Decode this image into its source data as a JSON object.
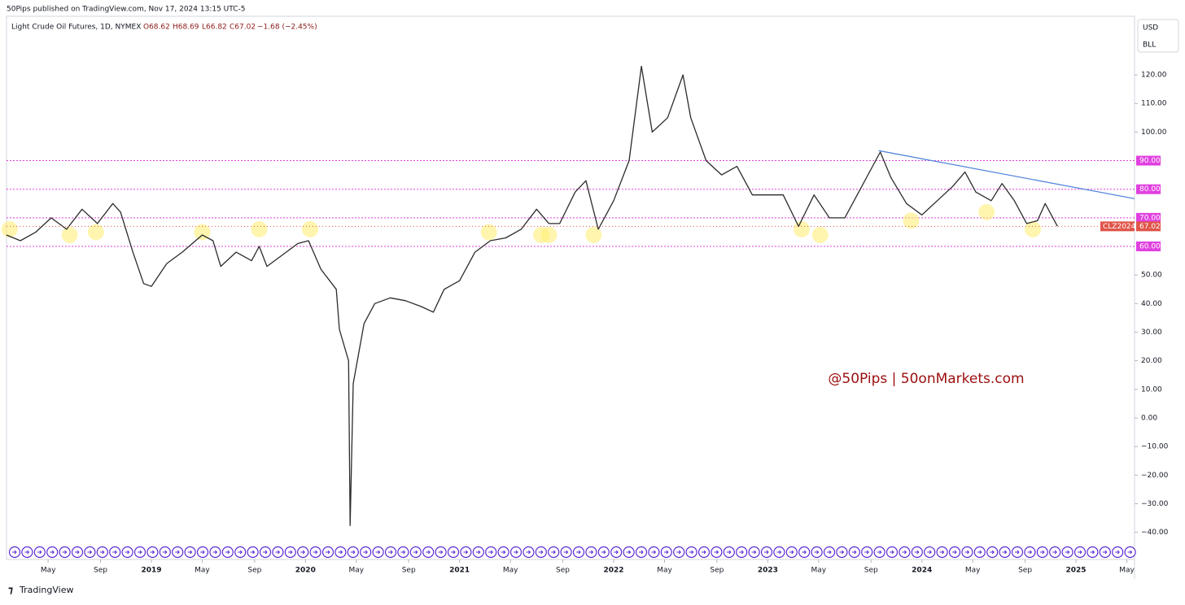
{
  "chart_data": {
    "type": "line",
    "publisher_line": "50Pips published on TradingView.com, Nov 17, 2024 13:15 UTC-5",
    "symbol": "Light Crude Oil Futures, 1D, NYMEX",
    "ohlc": [
      "O68.62",
      "H68.69",
      "L66.82",
      "C67.02",
      "−1.68 (−2.45%)"
    ],
    "currency": "USD",
    "unit": "BLL",
    "watermark": "@50Pips | 50onMarkets.com",
    "brand": "TradingView",
    "symbol_tag": "CLZ2024",
    "last_price": 67.02,
    "xlim": [
      2018.06,
      2025.38
    ],
    "ylim": [
      -49.5,
      140.5
    ],
    "xticks": [
      {
        "value": 2018.33,
        "label": "May"
      },
      {
        "value": 2018.67,
        "label": "Sep"
      },
      2019,
      {
        "value": 2019.33,
        "label": "May"
      },
      {
        "value": 2019.67,
        "label": "Sep"
      },
      2020,
      {
        "value": 2020.33,
        "label": "May"
      },
      {
        "value": 2020.67,
        "label": "Sep"
      },
      2021,
      {
        "value": 2021.33,
        "label": "May"
      },
      {
        "value": 2021.67,
        "label": "Sep"
      },
      2022,
      {
        "value": 2022.33,
        "label": "May"
      },
      {
        "value": 2022.67,
        "label": "Sep"
      },
      2023,
      {
        "value": 2023.33,
        "label": "May"
      },
      {
        "value": 2023.67,
        "label": "Sep"
      },
      2024,
      {
        "value": 2024.33,
        "label": "May"
      },
      {
        "value": 2024.67,
        "label": "Sep"
      },
      2025,
      {
        "value": 2025.33,
        "label": "May"
      }
    ],
    "yticks": [
      {
        "value": 120,
        "label": "120.00"
      },
      {
        "value": 110,
        "label": "110.00"
      },
      {
        "value": 100,
        "label": "100.00"
      },
      {
        "value": 50,
        "label": "50.00"
      },
      {
        "value": 40,
        "label": "40.00"
      },
      {
        "value": 30,
        "label": "30.00"
      },
      {
        "value": 20,
        "label": "20.00"
      },
      {
        "value": 10,
        "label": "10.00"
      },
      {
        "value": 0,
        "label": "0.00"
      },
      {
        "value": -10,
        "label": "−10.00"
      },
      {
        "value": -20,
        "label": "−20.00"
      },
      {
        "value": -30,
        "label": "−30.00"
      },
      {
        "value": -40,
        "label": "−40.00"
      }
    ],
    "levels": [
      {
        "value": 90,
        "label": "90.00"
      },
      {
        "value": 80,
        "label": "80.00"
      },
      {
        "value": 70,
        "label": "70.00"
      },
      {
        "value": 60,
        "label": "60.00"
      }
    ],
    "level_color": "#e040e0",
    "trendline": {
      "x": [
        2023.72,
        2025.38
      ],
      "y": [
        93.5,
        76.7
      ],
      "color": "#4a7fd8"
    },
    "highlights": {
      "x": [
        2018.08,
        2018.47,
        2018.64,
        2019.33,
        2019.7,
        2020.03,
        2021.19,
        2021.53,
        2021.58,
        2021.87,
        2023.22,
        2023.34,
        2023.93,
        2024.42,
        2024.72
      ],
      "y": [
        66,
        64,
        65,
        65,
        66,
        66,
        65,
        64,
        64,
        64,
        66,
        64,
        69,
        72,
        66
      ]
    },
    "series": [
      {
        "name": "CL",
        "color": "#2b2b2b",
        "x": [
          2018.06,
          2018.15,
          2018.25,
          2018.35,
          2018.45,
          2018.55,
          2018.65,
          2018.75,
          2018.8,
          2018.88,
          2018.95,
          2019.0,
          2019.1,
          2019.2,
          2019.33,
          2019.4,
          2019.45,
          2019.55,
          2019.65,
          2019.7,
          2019.75,
          2019.85,
          2019.95,
          2020.02,
          2020.1,
          2020.2,
          2020.22,
          2020.28,
          2020.29,
          2020.31,
          2020.38,
          2020.45,
          2020.55,
          2020.65,
          2020.75,
          2020.83,
          2020.9,
          2021.0,
          2021.1,
          2021.2,
          2021.3,
          2021.4,
          2021.5,
          2021.58,
          2021.65,
          2021.75,
          2021.82,
          2021.9,
          2022.0,
          2022.1,
          2022.18,
          2022.25,
          2022.35,
          2022.45,
          2022.5,
          2022.6,
          2022.7,
          2022.8,
          2022.9,
          2023.0,
          2023.1,
          2023.2,
          2023.3,
          2023.4,
          2023.5,
          2023.6,
          2023.7,
          2023.73,
          2023.8,
          2023.9,
          2024.0,
          2024.1,
          2024.2,
          2024.28,
          2024.35,
          2024.45,
          2024.52,
          2024.6,
          2024.68,
          2024.75,
          2024.8,
          2024.88
        ],
        "values": [
          64,
          62,
          65,
          70,
          66,
          73,
          68,
          75,
          72,
          58,
          47,
          46,
          54,
          58,
          64,
          62,
          53,
          58,
          55,
          60,
          53,
          57,
          61,
          62,
          52,
          45,
          31,
          20,
          -37.6,
          12,
          33,
          40,
          42,
          41,
          39,
          37,
          45,
          48,
          58,
          62,
          63,
          66,
          73,
          68,
          68,
          79,
          83,
          66,
          76,
          90,
          123,
          100,
          105,
          120,
          105,
          90,
          85,
          88,
          78,
          78,
          78,
          67,
          78,
          70,
          70,
          80,
          90,
          93,
          84,
          75,
          71,
          76,
          81,
          86,
          79,
          76,
          82,
          76,
          68,
          69,
          75,
          67.02
        ]
      }
    ]
  }
}
